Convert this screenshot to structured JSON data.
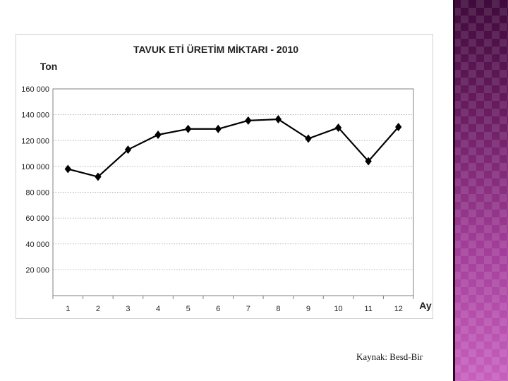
{
  "source_note": "Kaynak: Besd-Bir",
  "chart_data": {
    "type": "line",
    "title": "TAVUK ETİ ÜRETİM MİKTARI - 2010",
    "ylabel": "Ton",
    "xlabel": "Ay",
    "categories": [
      "1",
      "2",
      "3",
      "4",
      "5",
      "6",
      "7",
      "8",
      "9",
      "10",
      "11",
      "12"
    ],
    "series": [
      {
        "values": [
          98000,
          92000,
          113000,
          124500,
          129000,
          129000,
          135500,
          136500,
          121500,
          130000,
          104000,
          130500
        ],
        "color": "#000000",
        "marker": "diamond"
      }
    ],
    "ylim": [
      0,
      160000
    ],
    "yticks": [
      0,
      20000,
      40000,
      60000,
      80000,
      100000,
      120000,
      140000,
      160000
    ],
    "ytick_labels": [
      "",
      "20 000",
      "40 000",
      "60 000",
      "80 000",
      "100 000",
      "120 000",
      "140 000",
      "160 000"
    ],
    "grid": true,
    "legend": "none"
  }
}
